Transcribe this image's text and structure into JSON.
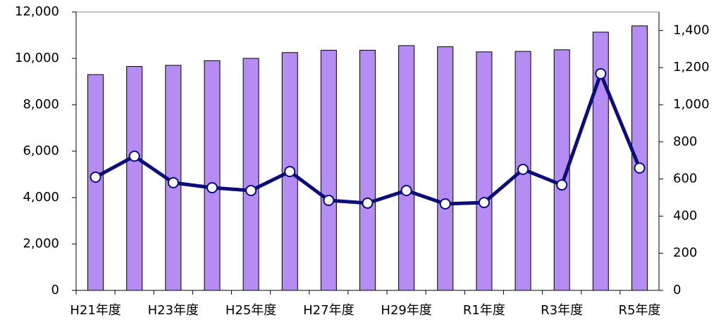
{
  "chart_data": {
    "type": "bar-line",
    "categories": [
      "H21年度",
      null,
      "H23年度",
      null,
      "H25年度",
      null,
      "H27年度",
      null,
      "H29年度",
      null,
      "R1年度",
      null,
      "R3年度",
      null,
      "R5年度"
    ],
    "series": [
      {
        "type": "bar",
        "color": "#b48cf2",
        "values": [
          9300,
          9650,
          9700,
          9900,
          10000,
          10250,
          10350,
          10350,
          10550,
          10500,
          10280,
          10300,
          10370,
          11130,
          11400
        ]
      },
      {
        "type": "line",
        "axis": "y2",
        "color": "#0c0c7a",
        "values": [
          610,
          723,
          580,
          553,
          538,
          640,
          485,
          470,
          538,
          466,
          473,
          652,
          568,
          1167,
          659
        ]
      }
    ],
    "ylim": [
      0,
      12000
    ],
    "yticks": [
      0,
      {
        "value": 2000,
        "label": "2,000"
      },
      {
        "value": 4000,
        "label": "4,000"
      },
      {
        "value": 6000,
        "label": "6,000"
      },
      {
        "value": 8000,
        "label": "8,000"
      },
      {
        "value": 10000,
        "label": "10,000"
      },
      {
        "value": 12000,
        "label": "12,000"
      }
    ],
    "y2lim": [
      0,
      1500
    ],
    "y2ticks": [
      0,
      200,
      400,
      600,
      800,
      {
        "value": 1000,
        "label": "1,000"
      },
      {
        "value": 1200,
        "label": "1,200"
      },
      {
        "value": 1400,
        "label": "1,400"
      }
    ]
  }
}
